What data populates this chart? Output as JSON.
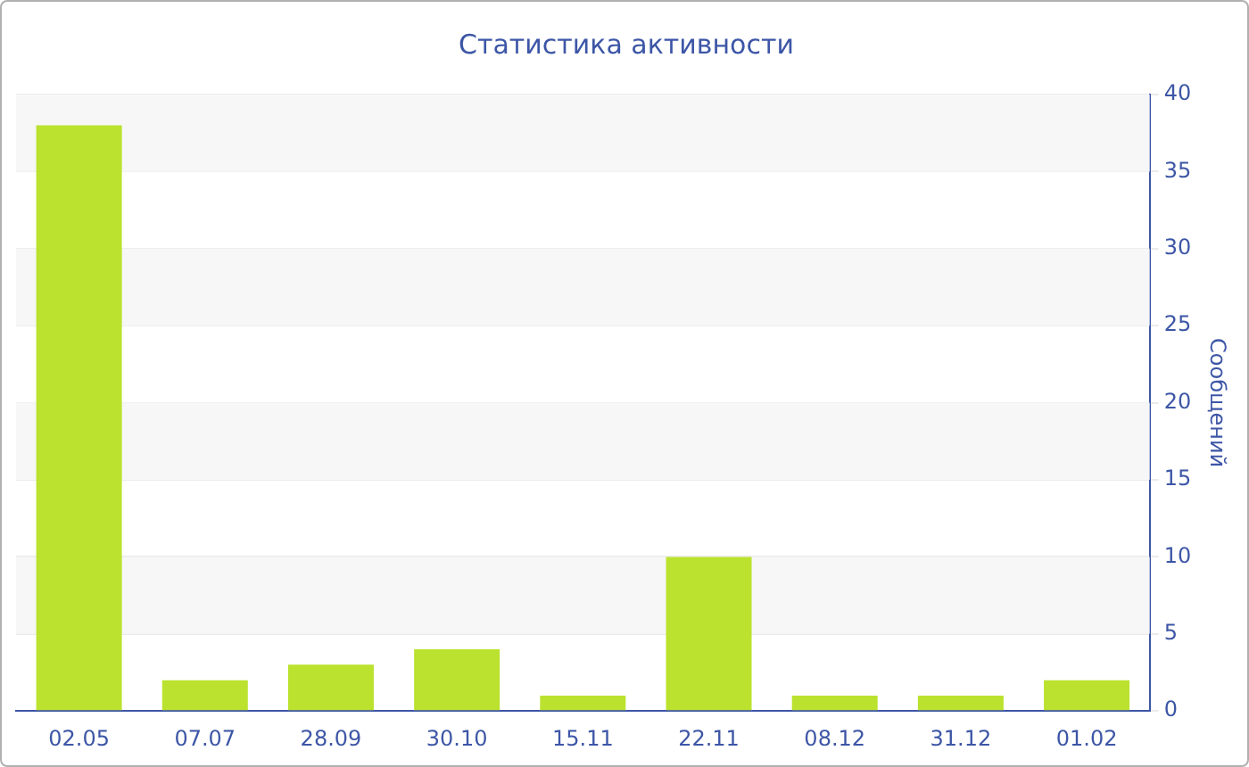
{
  "chart_data": {
    "type": "bar",
    "title": "Статистика активности",
    "ylabel": "Сообщений",
    "categories": [
      "02.05",
      "07.07",
      "28.09",
      "30.10",
      "15.11",
      "22.11",
      "08.12",
      "31.12",
      "01.02"
    ],
    "values": [
      38,
      2,
      3,
      4,
      1,
      10,
      1,
      1,
      2
    ],
    "color": "#bbe22e",
    "ylim": [
      0,
      40
    ],
    "yticks": [
      0,
      5,
      10,
      15,
      20,
      25,
      30,
      35,
      40
    ],
    "grid": "y",
    "legend": false
  }
}
